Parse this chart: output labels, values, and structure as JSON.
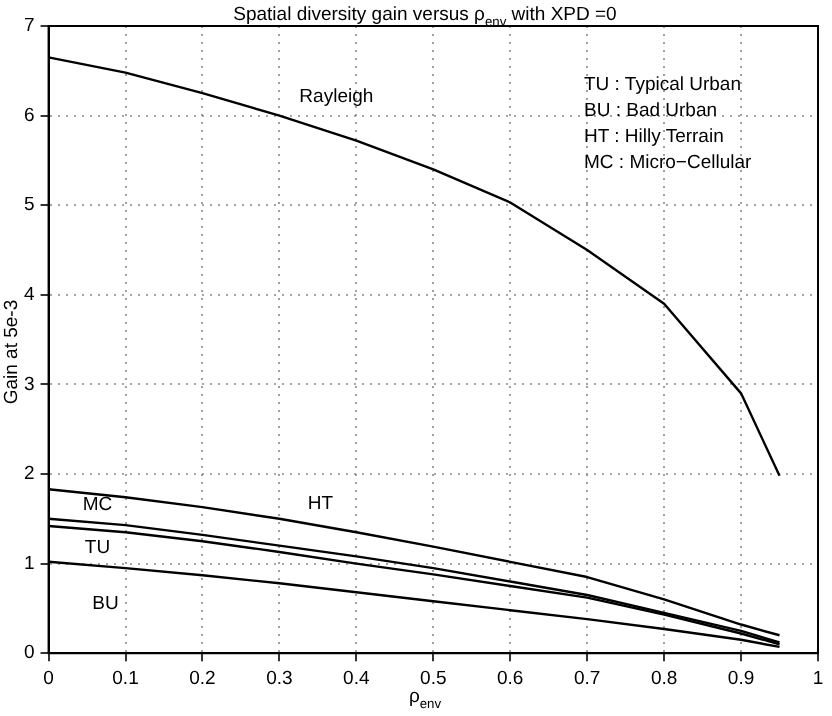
{
  "chart_data": {
    "type": "line",
    "title": "Spatial diversity gain versus ρ$_{env}$ with XPD =0",
    "xlabel": "ρ$_{env}$",
    "ylabel": "Gain at 5e-3",
    "x": [
      0,
      0.1,
      0.2,
      0.3,
      0.4,
      0.5,
      0.6,
      0.7,
      0.8,
      0.9,
      0.95
    ],
    "series": [
      {
        "name": "Rayleigh",
        "color": "#000000",
        "values": [
          6.65,
          6.48,
          6.25,
          6.0,
          5.72,
          5.4,
          5.03,
          4.5,
          3.9,
          2.9,
          1.98
        ]
      },
      {
        "name": "HT",
        "color": "#000000",
        "values": [
          1.83,
          1.74,
          1.63,
          1.5,
          1.35,
          1.19,
          1.02,
          0.85,
          0.6,
          0.32,
          0.2
        ]
      },
      {
        "name": "MC",
        "color": "#000000",
        "values": [
          1.5,
          1.43,
          1.32,
          1.2,
          1.08,
          0.95,
          0.8,
          0.65,
          0.45,
          0.25,
          0.12
        ]
      },
      {
        "name": "TU",
        "color": "#000000",
        "values": [
          1.42,
          1.35,
          1.25,
          1.13,
          1.0,
          0.88,
          0.75,
          0.62,
          0.43,
          0.22,
          0.1
        ]
      },
      {
        "name": "BU",
        "color": "#000000",
        "values": [
          1.02,
          0.95,
          0.87,
          0.78,
          0.68,
          0.58,
          0.48,
          0.38,
          0.27,
          0.15,
          0.07
        ]
      }
    ],
    "xlim": [
      0,
      1
    ],
    "xticks": [
      0,
      0.1,
      0.2,
      0.3,
      0.4,
      0.5,
      0.6,
      0.7,
      0.8,
      0.9,
      1
    ],
    "ylim": [
      0,
      7
    ],
    "yticks": [
      0,
      1,
      2,
      3,
      4,
      5,
      6,
      7
    ],
    "grid": true,
    "legend": false,
    "marker": "none",
    "line_style": "solid",
    "annotations": [
      "TU : Typical Urban",
      "BU : Bad Urban",
      "HT : Hilly Terrain",
      "MC : Micro−Cellular"
    ]
  }
}
